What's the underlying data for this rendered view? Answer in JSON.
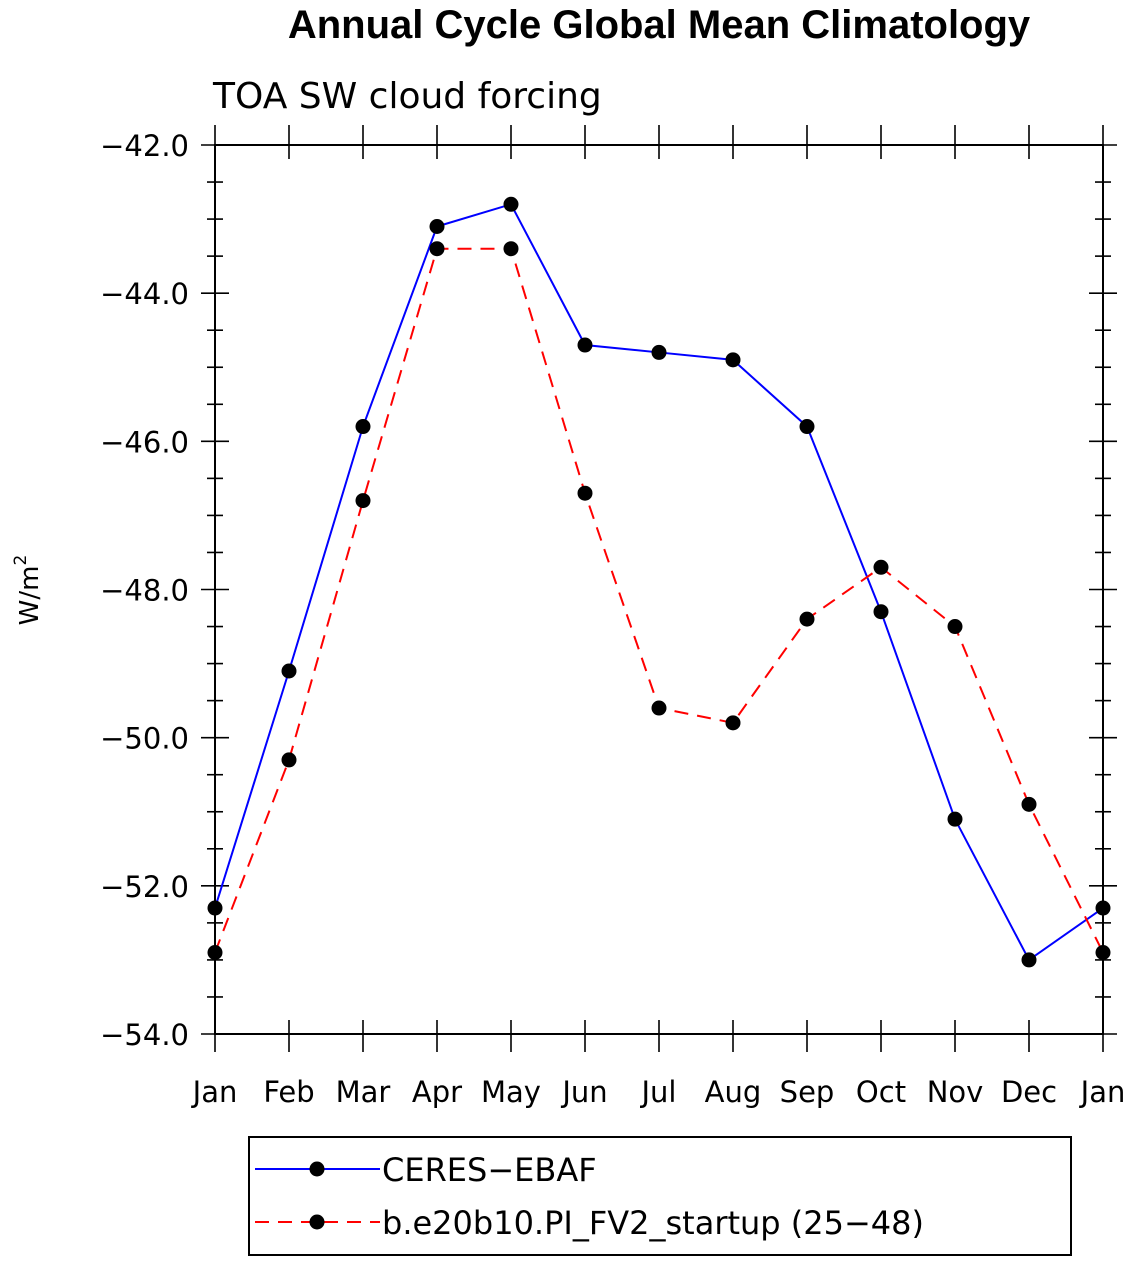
{
  "chart_data": {
    "type": "line",
    "title": "Annual Cycle Global Mean Climatology",
    "subtitle": "TOA SW cloud forcing",
    "ylabel_base": "W/m",
    "ylabel_sup": "2",
    "ylim": [
      -54.0,
      -42.0
    ],
    "yticks": [
      -54.0,
      -52.0,
      -50.0,
      -48.0,
      -46.0,
      -44.0,
      -42.0
    ],
    "ytick_labels": [
      "−54.0",
      "−52.0",
      "−50.0",
      "−48.0",
      "−46.0",
      "−44.0",
      "−42.0"
    ],
    "categories": [
      "Jan",
      "Feb",
      "Mar",
      "Apr",
      "May",
      "Jun",
      "Jul",
      "Aug",
      "Sep",
      "Oct",
      "Nov",
      "Dec",
      "Jan"
    ],
    "series": [
      {
        "name": "CERES−EBAF",
        "color": "#0000ff",
        "dash": "solid",
        "values": [
          -52.3,
          -49.1,
          -45.8,
          -43.1,
          -42.8,
          -44.7,
          -44.8,
          -44.9,
          -45.8,
          -48.3,
          -51.1,
          -53.0,
          -52.3
        ]
      },
      {
        "name": "b.e20b10.PI_FV2_startup (25−48)",
        "color": "#ff0000",
        "dash": "dashed",
        "values": [
          -52.9,
          -50.3,
          -46.8,
          -43.4,
          -43.4,
          -46.7,
          -49.6,
          -49.8,
          -48.4,
          -47.7,
          -48.5,
          -50.9,
          -52.9
        ]
      }
    ],
    "legend_position": "bottom"
  }
}
